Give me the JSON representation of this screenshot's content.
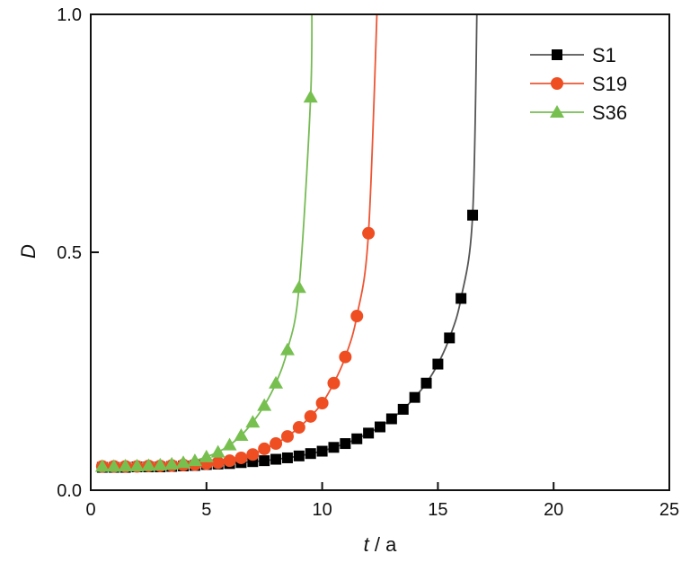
{
  "chart_data": {
    "type": "line",
    "title": "",
    "xlabel_italic": "t",
    "xlabel_rest": " / a",
    "ylabel": "D",
    "xlim": [
      0,
      25
    ],
    "ylim": [
      0,
      1
    ],
    "xticks": [
      "0",
      "5",
      "10",
      "15",
      "20",
      "25"
    ],
    "yticks": [
      "0.0",
      "0.5",
      "1.0"
    ],
    "xtick_values": [
      0,
      5,
      10,
      15,
      20,
      25
    ],
    "ytick_values": [
      0,
      0.5,
      1.0
    ],
    "legend_position": "top-right",
    "series": [
      {
        "name": "S1",
        "color": "#555555",
        "marker_color": "#000000",
        "marker": "square",
        "x": [
          0.5,
          1,
          1.5,
          2,
          2.5,
          3,
          3.5,
          4,
          4.5,
          5,
          5.5,
          6,
          6.5,
          7,
          7.5,
          8,
          8.5,
          9,
          9.5,
          10,
          10.5,
          11,
          11.5,
          12,
          12.5,
          13,
          13.5,
          14,
          14.5,
          15,
          15.5,
          16,
          16.5
        ],
        "y": [
          0.048,
          0.048,
          0.048,
          0.049,
          0.049,
          0.049,
          0.05,
          0.051,
          0.052,
          0.054,
          0.055,
          0.056,
          0.058,
          0.06,
          0.062,
          0.065,
          0.068,
          0.072,
          0.077,
          0.082,
          0.09,
          0.098,
          0.108,
          0.12,
          0.133,
          0.15,
          0.17,
          0.195,
          0.225,
          0.265,
          0.32,
          0.403,
          0.578
        ],
        "asymptote_t": 16.7
      },
      {
        "name": "S19",
        "color": "#ee5533",
        "marker_color": "#ee4e22",
        "marker": "circle",
        "x": [
          0.5,
          1,
          1.5,
          2,
          2.5,
          3,
          3.5,
          4,
          4.5,
          5,
          5.5,
          6,
          6.5,
          7,
          7.5,
          8,
          8.5,
          9,
          9.5,
          10,
          10.5,
          11,
          11.5,
          12
        ],
        "y": [
          0.05,
          0.05,
          0.05,
          0.05,
          0.051,
          0.051,
          0.052,
          0.053,
          0.054,
          0.056,
          0.058,
          0.062,
          0.068,
          0.075,
          0.087,
          0.098,
          0.113,
          0.132,
          0.155,
          0.183,
          0.225,
          0.28,
          0.366,
          0.54
        ],
        "asymptote_t": 12.4
      },
      {
        "name": "S36",
        "color": "#77bb55",
        "marker_color": "#77c050",
        "marker": "triangle",
        "x": [
          0.5,
          1,
          1.5,
          2,
          2.5,
          3,
          3.5,
          4,
          4.5,
          5,
          5.5,
          6,
          6.5,
          7,
          7.5,
          8,
          8.5,
          9,
          9.5
        ],
        "y": [
          0.05,
          0.05,
          0.051,
          0.051,
          0.052,
          0.053,
          0.055,
          0.058,
          0.062,
          0.07,
          0.08,
          0.095,
          0.115,
          0.143,
          0.178,
          0.225,
          0.295,
          0.426,
          0.826
        ],
        "asymptote_t": 9.55
      }
    ]
  }
}
